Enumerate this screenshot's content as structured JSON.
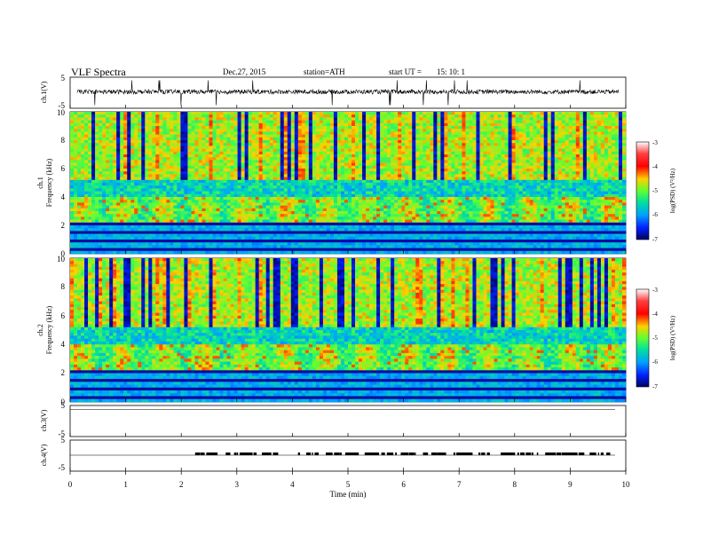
{
  "header": {
    "title": "VLF  Spectra",
    "date": "Dec.27, 2015",
    "station": "station=ATH",
    "start_label": "start  UT  =",
    "start_time": "15: 10: 1"
  },
  "chart_data": [
    {
      "type": "line",
      "panel": "ch1-waveform",
      "ylabel": "ch.1(V)",
      "ylim": [
        -5,
        5
      ],
      "ytick_labels": [
        "5",
        "-5"
      ],
      "description_values": {
        "baseline": 0,
        "noise_amplitude": 1,
        "spikes": true
      }
    },
    {
      "type": "heatmap",
      "panel": "ch1-spectrogram",
      "ylabel_channel": "ch.1",
      "ylabel": "Frequency  (kHz)",
      "ylim": [
        0,
        10
      ],
      "ytick_labels": [
        "0",
        "2",
        "4",
        "6",
        "8",
        "10"
      ],
      "colorbar": {
        "label": "log(PSD) (V²/Hz)",
        "range": [
          -7,
          -3
        ],
        "tick_labels": [
          "-3",
          "-4",
          "-5",
          "-6",
          "-7"
        ]
      },
      "bands": [
        {
          "freq_khz": [
            0,
            2.3
          ],
          "log_psd": -6.0,
          "note": "horizontal carrier lines"
        },
        {
          "freq_khz": [
            2.3,
            4.0
          ],
          "log_psd": -5.0
        },
        {
          "freq_khz": [
            4.0,
            5.2
          ],
          "log_psd": -5.6
        },
        {
          "freq_khz": [
            5.2,
            10
          ],
          "log_psd": -4.8,
          "note": "sferics"
        }
      ]
    },
    {
      "type": "heatmap",
      "panel": "ch2-spectrogram",
      "ylabel_channel": "ch.2",
      "ylabel": "Frequency  (kHz)",
      "ylim": [
        0,
        10
      ],
      "ytick_labels": [
        "0",
        "2",
        "4",
        "6",
        "8",
        "10"
      ],
      "colorbar": {
        "label": "log(PSD) (V²/Hz)",
        "range": [
          -7,
          -3
        ],
        "tick_labels": [
          "-3",
          "-4",
          "-5",
          "-6",
          "-7"
        ]
      },
      "bands": [
        {
          "freq_khz": [
            0,
            2.3
          ],
          "log_psd": -6.0
        },
        {
          "freq_khz": [
            2.3,
            4.0
          ],
          "log_psd": -5.0
        },
        {
          "freq_khz": [
            4.0,
            5.2
          ],
          "log_psd": -5.6
        },
        {
          "freq_khz": [
            5.2,
            10
          ],
          "log_psd": -4.8
        }
      ]
    },
    {
      "type": "line",
      "panel": "ch3-waveform",
      "ylabel": "ch.3(V)",
      "ylim": [
        -5,
        5
      ],
      "ytick_labels": [
        "5",
        "-5"
      ]
    },
    {
      "type": "line",
      "panel": "ch4-waveform",
      "ylabel": "ch.4(V)",
      "ylim": [
        -5,
        5
      ],
      "ytick_labels": [
        "5",
        "-5"
      ],
      "pulse_train_start_min": 2.25
    }
  ],
  "xaxis": {
    "label": "Time  (min)",
    "range": [
      0,
      10
    ],
    "tick_labels": [
      "0",
      "1",
      "2",
      "3",
      "4",
      "5",
      "6",
      "7",
      "8",
      "9",
      "10"
    ]
  },
  "colors": {
    "spectro_low": "#00007a",
    "spectro_mid": "#00cc66",
    "spectro_high": "#ff0000",
    "trace": "#000000"
  }
}
